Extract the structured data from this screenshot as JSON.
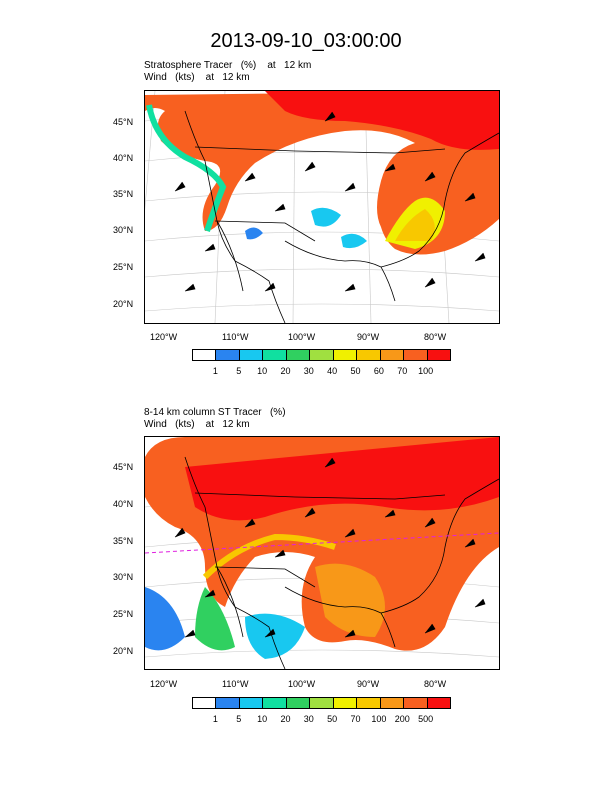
{
  "title": "2013-09-10_03:00:00",
  "panels": [
    {
      "line1": "Stratosphere Tracer   (%)    at   12 km",
      "line2": "Wind   (kts)    at   12 km",
      "lat_labels": [
        "45°N",
        "40°N",
        "35°N",
        "30°N",
        "25°N",
        "20°N"
      ],
      "lon_labels": [
        "120°W",
        "110°W",
        "100°W",
        "90°W",
        "80°W"
      ],
      "colorbar": {
        "colors": [
          "#ffffff",
          "#2a84f0",
          "#18c8f0",
          "#10e0a0",
          "#30d060",
          "#a0e040",
          "#f0f000",
          "#f8c800",
          "#f89818",
          "#f86020",
          "#f81010"
        ],
        "labels": [
          "1",
          "5",
          "10",
          "20",
          "30",
          "40",
          "50",
          "60",
          "70",
          "100"
        ]
      }
    },
    {
      "line1": "8-14 km column ST Tracer   (%)",
      "line2": "Wind   (kts)    at   12 km",
      "lat_labels": [
        "45°N",
        "40°N",
        "35°N",
        "30°N",
        "25°N",
        "20°N"
      ],
      "lon_labels": [
        "120°W",
        "110°W",
        "100°W",
        "90°W",
        "80°W"
      ],
      "colorbar": {
        "colors": [
          "#ffffff",
          "#2a84f0",
          "#18c8f0",
          "#10e0a0",
          "#30d060",
          "#a0e040",
          "#f0f000",
          "#f8c800",
          "#f89818",
          "#f86020",
          "#f81010"
        ],
        "labels": [
          "1",
          "5",
          "10",
          "20",
          "30",
          "50",
          "70",
          "100",
          "200",
          "500"
        ]
      }
    }
  ]
}
